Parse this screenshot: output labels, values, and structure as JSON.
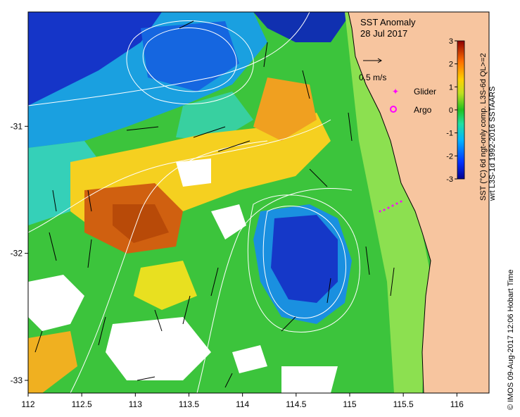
{
  "title": "SST Anomaly",
  "date": "28 Jul 2017",
  "scale_label": "0.5 m/s",
  "legend": {
    "glider_label": "Glider",
    "argo_label": "Argo",
    "glider_color": "#ff00ff",
    "argo_color": "#ff00ff"
  },
  "colorbar": {
    "caption_line1": "SST (°C) 6d ngt-only comp. L3S-6d  QL>=2",
    "caption_line2": "wrt L3S-1d 1992-2016 SSTAARS",
    "ticks": [
      "3",
      "2",
      "1",
      "0",
      "-1",
      "-2",
      "-3"
    ],
    "tick_values": [
      3,
      2,
      1,
      0,
      -1,
      -2,
      -3
    ],
    "vmin": -3,
    "vmax": 3
  },
  "credit": "© IMOS 09-Aug-2017 12:06 Hobart Time",
  "axes": {
    "x_ticks": [
      "112",
      "112.5",
      "113",
      "113.5",
      "114",
      "114.5",
      "115",
      "115.5",
      "116"
    ],
    "x_values": [
      112,
      112.5,
      113,
      113.5,
      114,
      114.5,
      115,
      115.5,
      116
    ],
    "y_ticks": [
      "-31",
      "-32",
      "-33"
    ],
    "y_values": [
      -31,
      -32,
      -33
    ],
    "lon_range": [
      112,
      116.3
    ],
    "lat_range": [
      -33.1,
      -30.1
    ]
  },
  "colors": {
    "land": "#f7c59f",
    "no_data": "#ffffff",
    "contour": "#ffffff",
    "arrow": "#000000"
  }
}
